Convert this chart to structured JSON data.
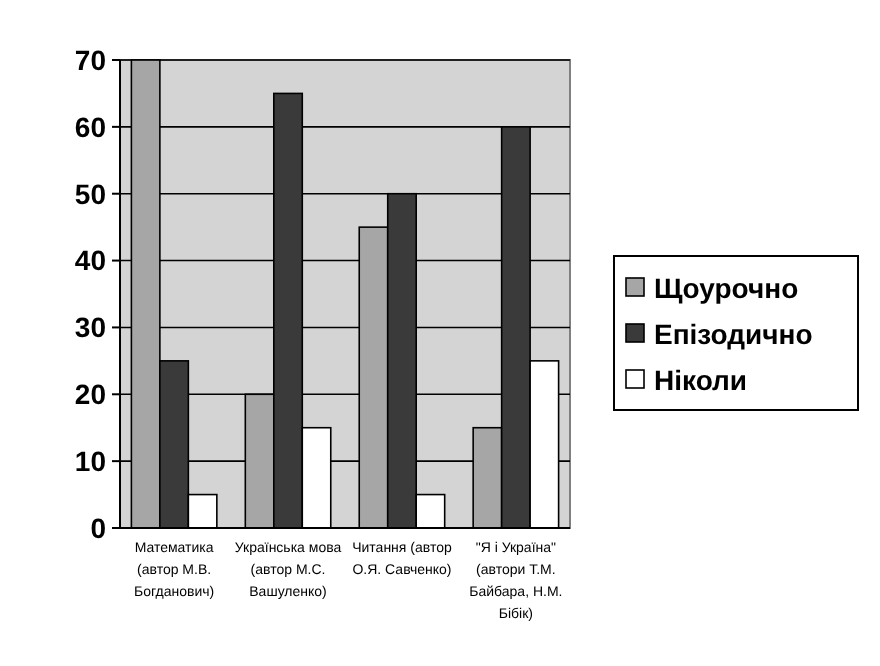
{
  "chart_data": {
    "type": "bar",
    "categories": [
      "Математика (автор М.В. Богданович)",
      "Українська мова (автор М.С. Вашуленко)",
      "Читання (автор О.Я. Савченко)",
      "\"Я і Україна\" (автори Т.М. Байбара, Н.М. Бібік)"
    ],
    "series": [
      {
        "name": "Щоурочно",
        "color": "#a6a6a6",
        "values": [
          70,
          20,
          45,
          15
        ]
      },
      {
        "name": "Епізодично",
        "color": "#3a3a3a",
        "values": [
          25,
          65,
          50,
          60
        ]
      },
      {
        "name": "Ніколи",
        "color": "#ffffff",
        "values": [
          5,
          15,
          5,
          25
        ]
      }
    ],
    "ylim": [
      0,
      70
    ],
    "yticks": [
      0,
      10,
      20,
      30,
      40,
      50,
      60,
      70
    ],
    "grid": "y",
    "legend": "right"
  }
}
